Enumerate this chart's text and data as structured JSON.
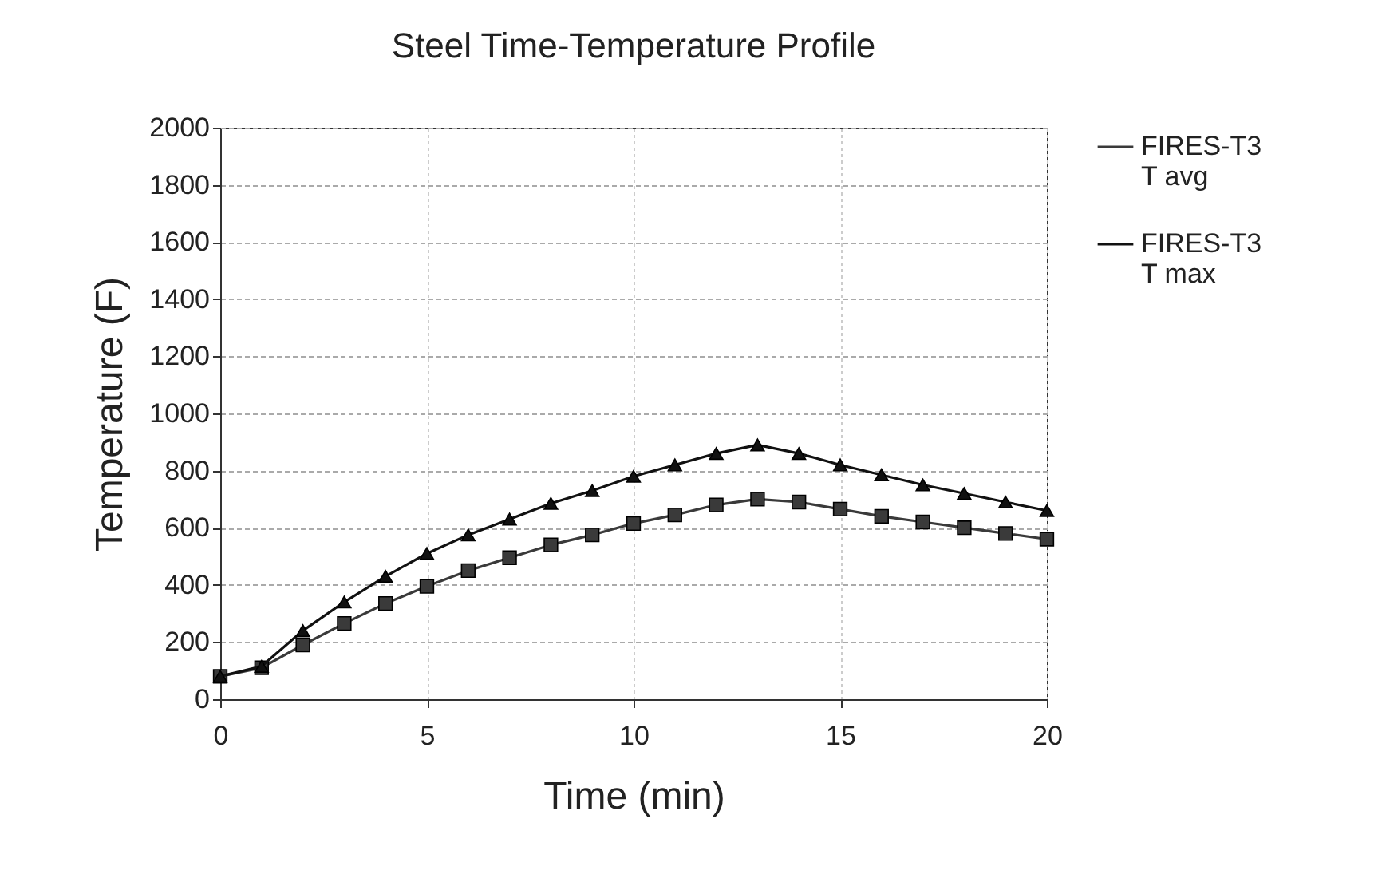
{
  "chart_data": {
    "type": "line",
    "title": "Steel Time-Temperature Profile",
    "xlabel": "Time (min)",
    "ylabel": "Temperature (F)",
    "x": [
      0,
      1,
      2,
      3,
      4,
      5,
      6,
      7,
      8,
      9,
      10,
      11,
      12,
      13,
      14,
      15,
      16,
      17,
      18,
      19,
      20
    ],
    "series": [
      {
        "name": "FIRES-T3 T avg",
        "color": "#3a3a3a",
        "marker": "square",
        "values": [
          80,
          110,
          190,
          265,
          335,
          395,
          450,
          495,
          540,
          575,
          615,
          645,
          680,
          700,
          690,
          665,
          640,
          620,
          600,
          580,
          560
        ]
      },
      {
        "name": "FIRES-T3 T max",
        "color": "#111111",
        "marker": "triangle",
        "values": [
          80,
          115,
          240,
          340,
          430,
          510,
          575,
          630,
          685,
          730,
          780,
          820,
          860,
          890,
          860,
          820,
          785,
          750,
          720,
          690,
          660
        ]
      }
    ],
    "xlim": [
      0,
      20
    ],
    "xticks": [
      0,
      5,
      10,
      15,
      20
    ],
    "ylim": [
      0,
      2000
    ],
    "yticks": [
      0,
      200,
      400,
      600,
      800,
      1000,
      1200,
      1400,
      1600,
      1800,
      2000
    ],
    "grid": true,
    "legend": "right",
    "line_style": "solid"
  }
}
